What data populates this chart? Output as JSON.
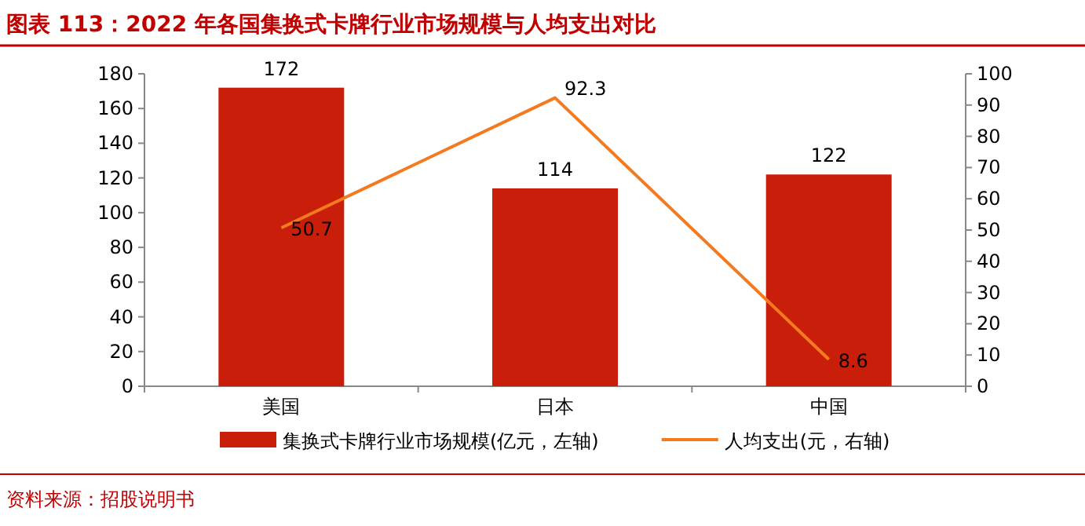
{
  "chart_data": {
    "type": "bar",
    "title": "图表 113：2022 年各国集换式卡牌行业市场规模与人均支出对比",
    "categories": [
      "美国",
      "日本",
      "中国"
    ],
    "series": [
      {
        "name": "集换式卡牌行业市场规模(亿元，左轴)",
        "color": "#c81e0a",
        "values": [
          172,
          114,
          122
        ]
      },
      {
        "name": "人均支出(元，右轴)",
        "type": "line",
        "axis": "y2",
        "color": "#f47a20",
        "values": [
          50.7,
          92.3,
          8.6
        ]
      }
    ],
    "ylim": [
      0,
      180
    ],
    "yticks": [
      0,
      20,
      40,
      60,
      80,
      100,
      120,
      140,
      160,
      180
    ],
    "y2lim": [
      0,
      100
    ],
    "y2ticks": [
      0,
      10,
      20,
      30,
      40,
      50,
      60,
      70,
      80,
      90,
      100
    ],
    "data_labels": true,
    "legend": "bottom",
    "annotations": [
      "资料来源：招股说明书"
    ]
  }
}
